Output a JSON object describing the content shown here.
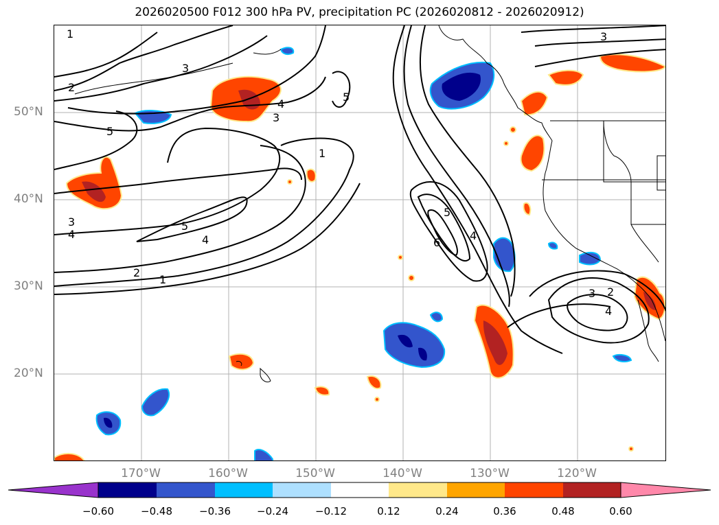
{
  "title": "2026020500 F012 300 hPa PV, precipitation PC (2026020812 - 2026020912)",
  "lat_labels": [
    "50°N",
    "40°N",
    "30°N",
    "20°N"
  ],
  "lon_labels": [
    "170°W",
    "160°W",
    "150°W",
    "140°W",
    "130°W",
    "120°W"
  ],
  "contour_labels": [
    "1",
    "2",
    "3",
    "4",
    "5",
    "6"
  ],
  "colorbar": {
    "ticks": [
      "−0.60",
      "−0.48",
      "−0.36",
      "−0.24",
      "−0.12",
      "0.12",
      "0.24",
      "0.36",
      "0.48",
      "0.60"
    ],
    "colors": [
      "#9933cc",
      "#00008b",
      "#3355cc",
      "#00bfff",
      "#aee0ff",
      "#ffffff",
      "#ffe88a",
      "#ffa500",
      "#ff4500",
      "#b22222",
      "#ff88aa"
    ]
  },
  "colors": {
    "neg_dark": "#00008b",
    "neg_mid": "#3355cc",
    "neg_light": "#00bfff",
    "pos_light": "#ffa500",
    "pos_mid": "#ff4500",
    "pos_dark": "#b22222",
    "grid": "#b0b0b0",
    "coast": "#000000"
  }
}
